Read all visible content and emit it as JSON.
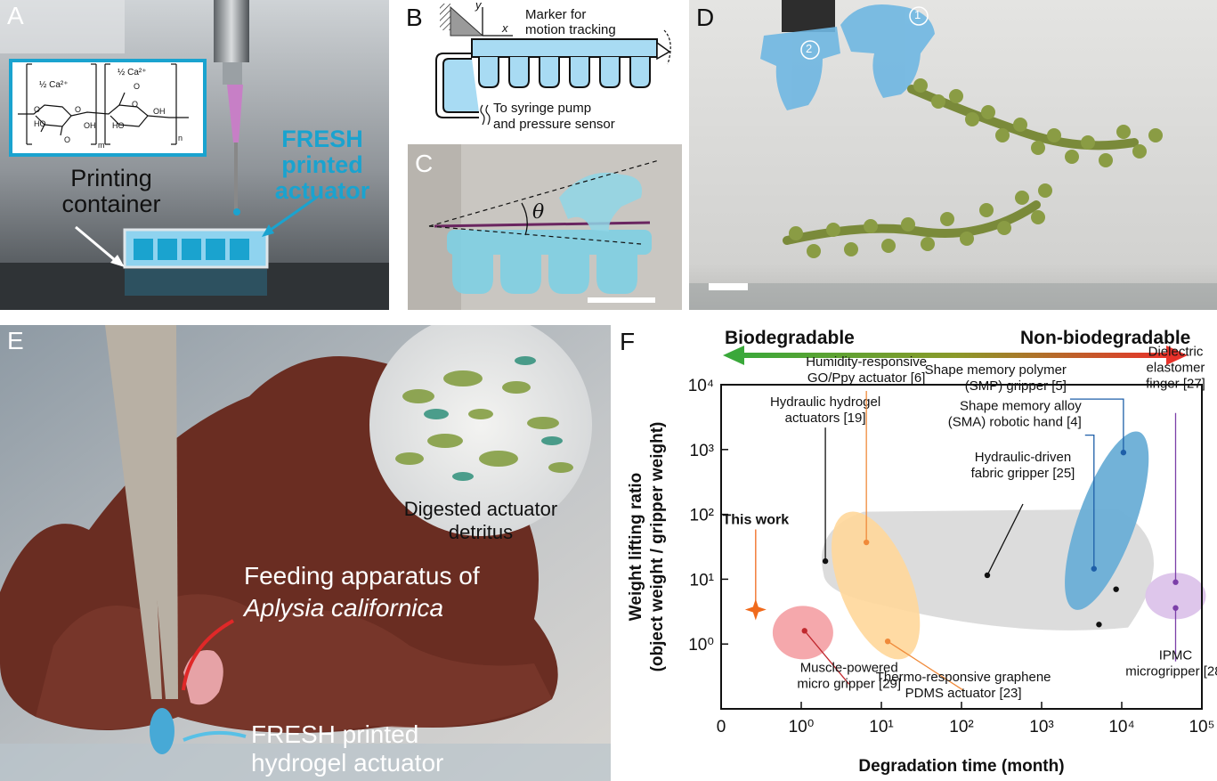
{
  "panels": {
    "a": {
      "label": "A",
      "chem_ca_left": "½ Ca²⁺",
      "chem_ca_right": "½ Ca²⁺",
      "chem_sub_m": "m",
      "chem_sub_n": "n",
      "chem_labels": [
        "HO",
        "O",
        "O",
        "O",
        "OH",
        "HO",
        "O",
        "O",
        "OH"
      ],
      "printing_container": [
        "Printing",
        "container"
      ],
      "fresh_actuator": [
        "FRESH",
        "printed",
        "actuator"
      ]
    },
    "b": {
      "label": "B",
      "y_axis": "y",
      "x_axis": "x",
      "marker_text": [
        "Marker for",
        "motion tracking"
      ],
      "syringe_text": [
        "To syringe pump",
        "and pressure sensor"
      ]
    },
    "c": {
      "label": "C",
      "angle_symbol": "θ"
    },
    "d": {
      "label": "D",
      "marker_1": "1",
      "marker_2": "2"
    },
    "e": {
      "label": "E",
      "digested": [
        "Digested actuator",
        "detritus"
      ],
      "feeding_line1": "Feeding apparatus of",
      "feeding_line2": "Aplysia californica",
      "fresh_hydrogel": [
        "FRESH printed",
        "hydrogel actuator"
      ]
    },
    "f": {
      "label": "F",
      "arrow_left": "Biodegradable",
      "arrow_right": "Non-biodegradable"
    }
  },
  "colors": {
    "accent_cyan": "#1aa3cf",
    "biodegradable_green": "#3aa83a",
    "nonbiodegradable_red": "#e8322a",
    "this_work_orange": "#f06a1c"
  },
  "chart_data": {
    "type": "scatter",
    "xlabel": "Degradation time (month)",
    "ylabel": [
      "Weight lifting ratio",
      "(object weight / gripper weight)"
    ],
    "x_scale": "log",
    "y_scale": "log",
    "xlim": [
      0.1,
      100000
    ],
    "ylim": [
      0.1,
      10000
    ],
    "x_ticks": [
      {
        "value": 0.1,
        "label": "0"
      },
      {
        "value": 1,
        "label": "10⁰"
      },
      {
        "value": 10,
        "label": "10¹"
      },
      {
        "value": 100,
        "label": "10²"
      },
      {
        "value": 1000,
        "label": "10³"
      },
      {
        "value": 10000,
        "label": "10⁴"
      },
      {
        "value": 100000,
        "label": "10⁵"
      }
    ],
    "y_ticks": [
      {
        "value": 1,
        "label": "10⁰"
      },
      {
        "value": 10,
        "label": "10¹"
      },
      {
        "value": 100,
        "label": "10²"
      },
      {
        "value": 1000,
        "label": "10³"
      },
      {
        "value": 10000,
        "label": "10⁴"
      }
    ],
    "grid": false,
    "regions": [
      {
        "name": "hydraulic",
        "color": "#d8d8d8"
      },
      {
        "name": "hydrogel-graphene",
        "color": "#ffd79a"
      },
      {
        "name": "muscle",
        "color": "#f4a3a8"
      },
      {
        "name": "smp-sma",
        "color": "#6aaed6"
      },
      {
        "name": "ipmc-elastomer",
        "color": "#dcc3ea"
      }
    ],
    "points": [
      {
        "x": 0.27,
        "y": 3.4,
        "color": "#f06a1c",
        "marker": "star",
        "label": [
          "This work"
        ]
      },
      {
        "x": 2,
        "y": 19,
        "color": "#111111",
        "label": [
          "Hydraulic hydrogel",
          "actuators [19]"
        ]
      },
      {
        "x": 6.5,
        "y": 37,
        "color": "#f08a3a",
        "label": [
          "Humidity-responsive",
          "GO/Ppy actuator [6]"
        ]
      },
      {
        "x": 1.1,
        "y": 1.6,
        "color": "#c0282e",
        "label": [
          "Muscle-powered",
          "micro gripper [29]"
        ]
      },
      {
        "x": 12,
        "y": 1.1,
        "color": "#f08a3a",
        "label": [
          "Thermo-responsive graphene",
          "PDMS actuator [23]"
        ]
      },
      {
        "x": 210,
        "y": 11.5,
        "color": "#111111",
        "label": [
          "Hydraulic-driven",
          "fabric gripper [25]"
        ]
      },
      {
        "x": 4500,
        "y": 14.5,
        "color": "#1e5fa8",
        "label": [
          "Shape memory alloy",
          "(SMA) robotic hand [4]"
        ]
      },
      {
        "x": 10500,
        "y": 900,
        "color": "#1e5fa8",
        "label": [
          "Shape memory polymer",
          "(SMP) gripper [5]"
        ]
      },
      {
        "x": 47000,
        "y": 9,
        "color": "#7b3fa8",
        "label": [
          "Dielectric",
          "elastomer",
          "finger [27]"
        ]
      },
      {
        "x": 47000,
        "y": 3.6,
        "color": "#7b3fa8",
        "label": [
          "IPMC",
          "microgripper [28]"
        ]
      },
      {
        "x": 8500,
        "y": 7,
        "color": "#111111",
        "label": []
      },
      {
        "x": 5200,
        "y": 2,
        "color": "#111111",
        "label": []
      }
    ]
  }
}
